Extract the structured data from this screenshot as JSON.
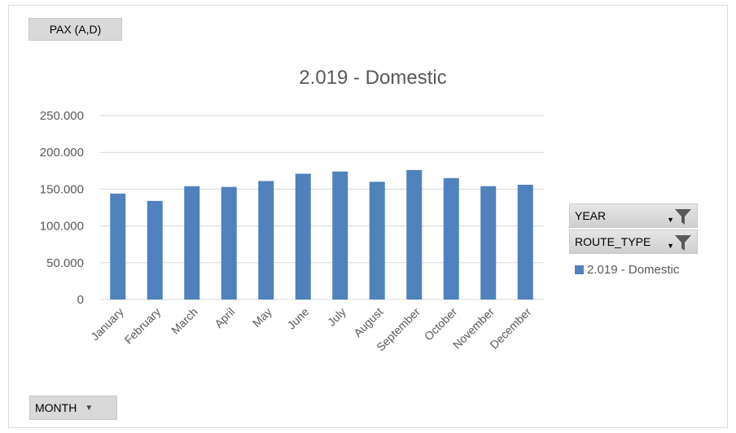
{
  "pivot_fields": {
    "values_field": "PAX (A,D)",
    "axis_field": "MONTH",
    "filters": [
      "YEAR",
      "ROUTE_TYPE"
    ]
  },
  "colors": {
    "bar": "#4f81bd",
    "grid": "#d9d9d9",
    "text": "#595959"
  },
  "icons": {
    "filter": "funnel-icon",
    "dropdown": "dropdown-arrow-icon"
  },
  "chart_data": {
    "type": "bar",
    "title": "2.019 - Domestic",
    "categories": [
      "January",
      "February",
      "March",
      "April",
      "May",
      "June",
      "July",
      "August",
      "September",
      "October",
      "November",
      "December"
    ],
    "series": [
      {
        "name": "2.019 - Domestic",
        "values": [
          144000,
          134000,
          154000,
          153000,
          161000,
          171000,
          174000,
          160000,
          176000,
          165000,
          154000,
          156000
        ]
      }
    ],
    "y_ticks": [
      "0",
      "50.000",
      "100.000",
      "150.000",
      "200.000",
      "250.000"
    ],
    "ylim": [
      0,
      250000
    ],
    "grid": true,
    "legend": "right"
  }
}
